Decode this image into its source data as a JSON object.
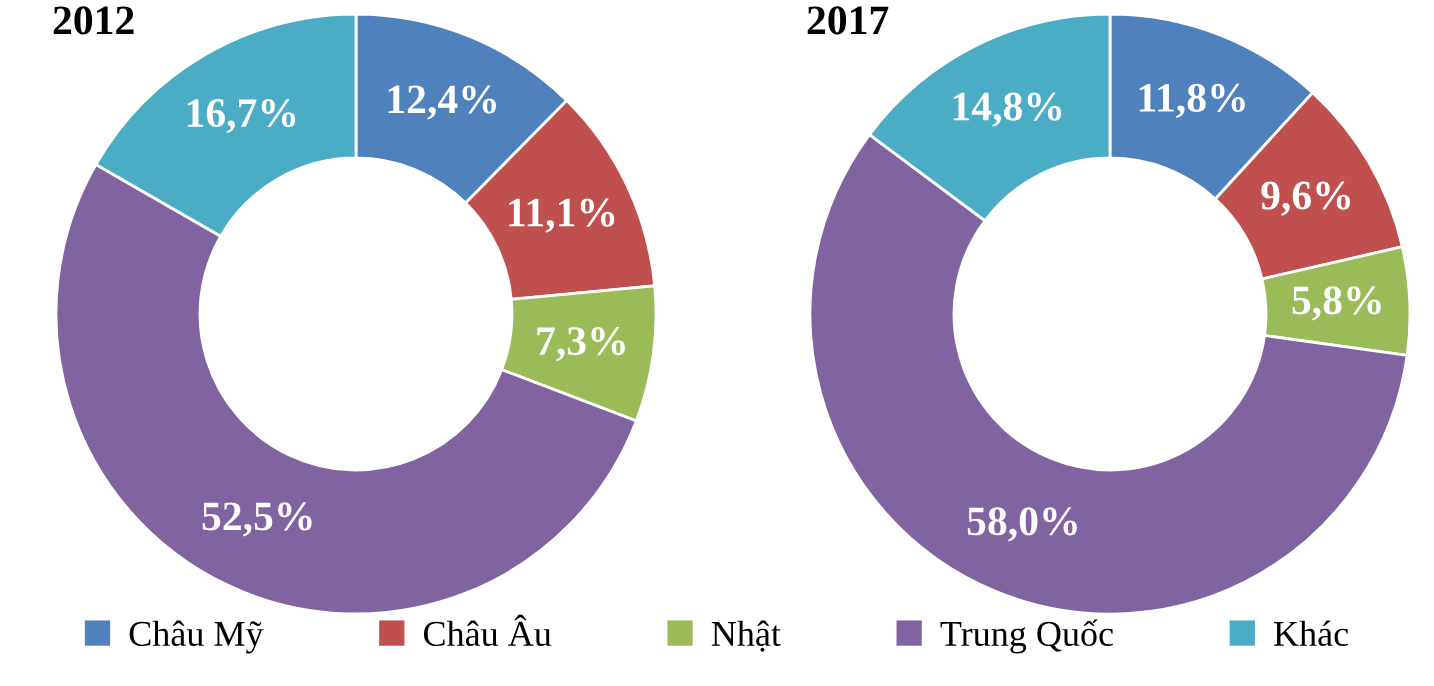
{
  "chart_data": [
    {
      "type": "donut",
      "title": "2012",
      "categories": [
        "Châu Mỹ",
        "Châu Âu",
        "Nhật",
        "Trung Quốc",
        "Khác"
      ],
      "values": [
        12.4,
        11.1,
        7.3,
        52.5,
        16.7
      ],
      "colors": [
        "#4f81bd",
        "#c0504d",
        "#9bbb59",
        "#8064a2",
        "#4bacc6"
      ],
      "value_labels": [
        "12,4%",
        "11,1%",
        "7,3%",
        "52,5%",
        "16,7%"
      ],
      "legend": "bottom"
    },
    {
      "type": "donut",
      "title": "2017",
      "categories": [
        null,
        null,
        null,
        null,
        null
      ],
      "values": [
        11.8,
        9.6,
        5.8,
        58.0,
        14.8
      ],
      "colors": [
        "#4f81bd",
        "#c0504d",
        "#9bbb59",
        "#8064a2",
        "#4bacc6"
      ],
      "value_labels": [
        "11,8%",
        "9,6%",
        "5,8%",
        "58,0%",
        "14,8%"
      ]
    }
  ]
}
